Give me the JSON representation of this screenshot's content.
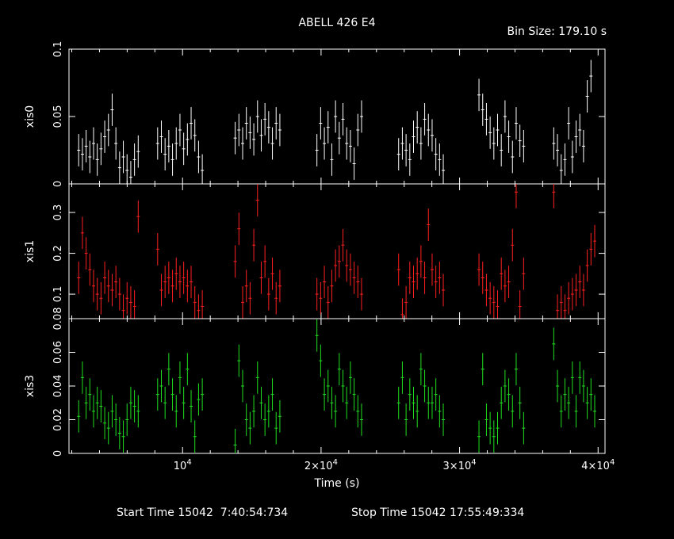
{
  "header": {
    "title": "ABELL 426 E4",
    "bin_size": "Bin Size: 179.10 s"
  },
  "footer": {
    "start_time": "Start Time 15042  7:40:54:734",
    "stop_time": "Stop Time 15042 17:55:49:334"
  },
  "chart_data": {
    "type": "scatter",
    "xlabel": "Time (s)",
    "xlim": [
      1800,
      40500
    ],
    "x_ticks": [
      10000,
      20000,
      30000,
      40000
    ],
    "x_tick_labels": [
      {
        "base": "10",
        "exp": "4"
      },
      {
        "base": "2×10",
        "exp": "4"
      },
      {
        "base": "3×10",
        "exp": "4"
      },
      {
        "base": "4×10",
        "exp": "4"
      }
    ],
    "panels": [
      {
        "name": "xis0",
        "ylabel": "xis0",
        "color": "#ffffff",
        "ylim": [
          0,
          0.1
        ],
        "y_ticks": [
          0,
          0.05,
          0.1
        ],
        "y_tick_labels": [
          "0",
          "0.05",
          "0.1"
        ],
        "segments": [
          {
            "start": 2500,
            "values": [
              0.025,
              0.022,
              0.028,
              0.02,
              0.03,
              0.018,
              0.026,
              0.035,
              0.04,
              0.055,
              0.03,
              0.012,
              0.02,
              0.01,
              0.005,
              0.018,
              0.024
            ]
          },
          {
            "start": 8200,
            "values": [
              0.03,
              0.035,
              0.022,
              0.028,
              0.018,
              0.03,
              0.04,
              0.026,
              0.033,
              0.045,
              0.036,
              0.02,
              0.01
            ]
          },
          {
            "start": 13800,
            "values": [
              0.034,
              0.04,
              0.03,
              0.045,
              0.038,
              0.033,
              0.05,
              0.036,
              0.048,
              0.042,
              0.03,
              0.045,
              0.04
            ]
          },
          {
            "start": 19700,
            "values": [
              0.025,
              0.045,
              0.03,
              0.042,
              0.018,
              0.05,
              0.034,
              0.048,
              0.03,
              0.028,
              0.015,
              0.04,
              0.05
            ]
          },
          {
            "start": 25600,
            "values": [
              0.022,
              0.03,
              0.025,
              0.018,
              0.035,
              0.042,
              0.03,
              0.048,
              0.04,
              0.036,
              0.022,
              0.018,
              0.01
            ]
          },
          {
            "start": 31400,
            "values": [
              0.066,
              0.055,
              0.048,
              0.038,
              0.03,
              0.04,
              0.025,
              0.05,
              0.035,
              0.02,
              0.045,
              0.032,
              0.028
            ]
          },
          {
            "start": 36800,
            "values": [
              0.03,
              0.025,
              0.01,
              0.018,
              0.045,
              0.02,
              0.035,
              0.04,
              0.028,
              0.065,
              0.08
            ]
          }
        ]
      },
      {
        "name": "xis1",
        "ylabel": "xis1",
        "color": "#ff2020",
        "ylim": [
          0.04,
          0.37
        ],
        "y_ticks": [
          0.1,
          0.2,
          0.3
        ],
        "y_tick_labels": [
          "0.1",
          "0.2",
          "0.3"
        ],
        "segments": [
          {
            "start": 2500,
            "values": [
              0.14,
              0.25,
              0.2,
              0.16,
              0.12,
              0.1,
              0.09,
              0.14,
              0.12,
              0.11,
              0.13,
              0.1,
              0.06,
              0.09,
              0.08,
              0.07,
              0.29
            ]
          },
          {
            "start": 8200,
            "values": [
              0.21,
              0.11,
              0.13,
              0.14,
              0.12,
              0.15,
              0.13,
              0.14,
              0.12,
              0.13,
              0.08,
              0.06,
              0.07
            ]
          },
          {
            "start": 13800,
            "values": [
              0.18,
              0.26,
              0.08,
              0.12,
              0.09,
              0.22,
              0.33,
              0.14,
              0.18,
              0.1,
              0.15,
              0.09,
              0.12
            ]
          },
          {
            "start": 19700,
            "values": [
              0.1,
              0.09,
              0.13,
              0.08,
              0.12,
              0.17,
              0.18,
              0.22,
              0.17,
              0.16,
              0.14,
              0.13,
              0.1
            ]
          },
          {
            "start": 25600,
            "values": [
              0.16,
              0.05,
              0.08,
              0.14,
              0.13,
              0.15,
              0.18,
              0.14,
              0.27,
              0.16,
              0.13,
              0.14,
              0.11
            ]
          },
          {
            "start": 31400,
            "values": [
              0.16,
              0.14,
              0.11,
              0.09,
              0.08,
              0.07,
              0.15,
              0.12,
              0.13,
              0.22,
              0.35,
              0.07,
              0.15
            ]
          },
          {
            "start": 36800,
            "values": [
              0.35,
              0.06,
              0.08,
              0.06,
              0.09,
              0.1,
              0.11,
              0.13,
              0.11,
              0.17,
              0.21,
              0.23
            ]
          }
        ]
      },
      {
        "name": "xis3",
        "ylabel": "xis3",
        "color": "#20e020",
        "ylim": [
          0,
          0.08
        ],
        "y_ticks": [
          0,
          0.02,
          0.04,
          0.06,
          0.08
        ],
        "y_tick_labels": [
          "0",
          "0.02",
          "0.04",
          "0.06",
          "0.08"
        ],
        "segments": [
          {
            "start": 2500,
            "values": [
              0.022,
              0.045,
              0.03,
              0.035,
              0.025,
              0.03,
              0.028,
              0.018,
              0.015,
              0.025,
              0.02,
              0.012,
              0.01,
              0.02,
              0.03,
              0.028,
              0.025
            ]
          },
          {
            "start": 8200,
            "values": [
              0.035,
              0.04,
              0.03,
              0.05,
              0.035,
              0.025,
              0.045,
              0.03,
              0.05,
              0.028,
              0.01,
              0.032,
              0.035
            ]
          },
          {
            "start": 13800,
            "values": [
              0.005,
              0.055,
              0.04,
              0.02,
              0.015,
              0.025,
              0.045,
              0.03,
              0.02,
              0.025,
              0.035,
              0.015,
              0.022
            ]
          },
          {
            "start": 19700,
            "values": [
              0.07,
              0.055,
              0.035,
              0.04,
              0.03,
              0.025,
              0.05,
              0.04,
              0.03,
              0.045,
              0.035,
              0.025,
              0.02
            ]
          },
          {
            "start": 25600,
            "values": [
              0.03,
              0.045,
              0.02,
              0.035,
              0.03,
              0.025,
              0.05,
              0.04,
              0.03,
              0.03,
              0.035,
              0.025,
              0.02
            ]
          },
          {
            "start": 31400,
            "values": [
              0.01,
              0.05,
              0.02,
              0.015,
              0.01,
              0.015,
              0.03,
              0.04,
              0.035,
              0.025,
              0.05,
              0.03,
              0.015
            ]
          },
          {
            "start": 36800,
            "values": [
              0.065,
              0.04,
              0.025,
              0.035,
              0.03,
              0.045,
              0.025,
              0.045,
              0.04,
              0.03,
              0.035,
              0.025
            ]
          }
        ]
      }
    ]
  }
}
